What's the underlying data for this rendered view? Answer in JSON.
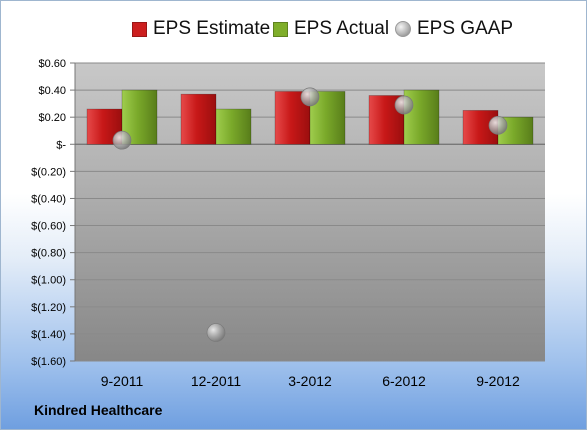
{
  "chart_data": {
    "type": "bar",
    "categories": [
      "9-2011",
      "12-2011",
      "3-2012",
      "6-2012",
      "9-2012"
    ],
    "series": [
      {
        "name": "EPS Estimate",
        "kind": "bar",
        "color": "#cc1f1f",
        "values": [
          0.26,
          0.37,
          0.39,
          0.36,
          0.25
        ]
      },
      {
        "name": "EPS Actual",
        "kind": "bar",
        "color": "#7fae2a",
        "values": [
          0.4,
          0.26,
          0.39,
          0.4,
          0.2
        ]
      },
      {
        "name": "EPS GAAP",
        "kind": "marker",
        "color": "#a8a8a8",
        "values": [
          0.03,
          -1.39,
          0.35,
          0.29,
          0.14
        ]
      }
    ],
    "ylim": [
      -1.6,
      0.6
    ],
    "yticks": [
      0.6,
      0.4,
      0.2,
      0,
      -0.2,
      -0.4,
      -0.6,
      -0.8,
      -1.0,
      -1.2,
      -1.4,
      -1.6
    ],
    "ytick_labels": [
      "$0.60",
      "$0.40",
      "$0.20",
      "$-",
      "$(0.20)",
      "$(0.40)",
      "$(0.60)",
      "$(0.80)",
      "$(1.00)",
      "$(1.20)",
      "$(1.40)",
      "$(1.60)"
    ],
    "grid": true,
    "legend_position": "top"
  },
  "company_name": "Kindred Healthcare"
}
